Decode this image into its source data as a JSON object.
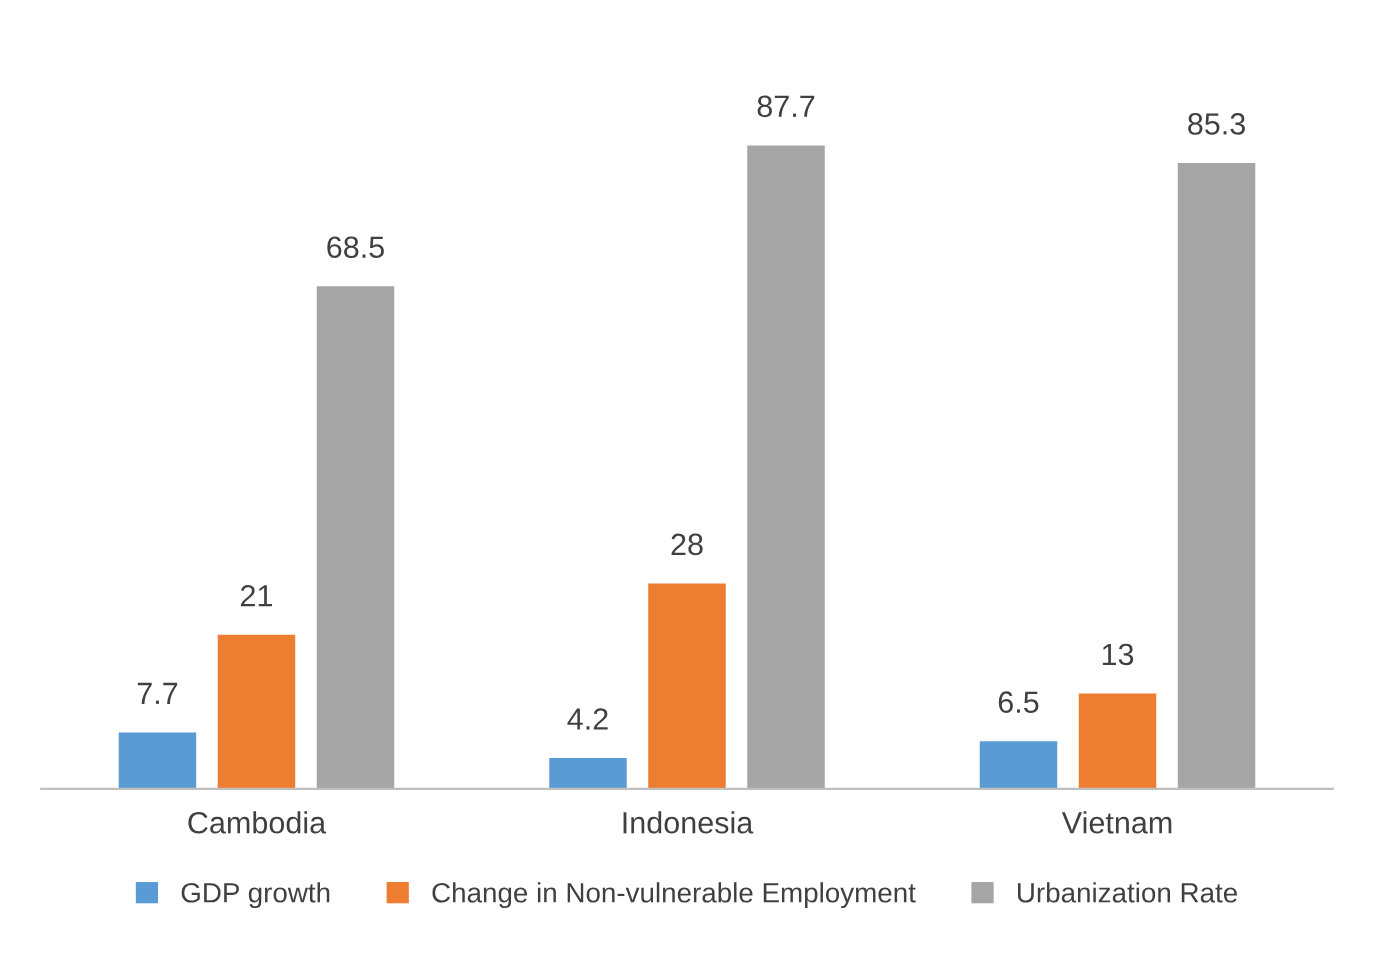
{
  "chart_data": {
    "type": "bar",
    "categories": [
      "Cambodia",
      "Indonesia",
      "Vietnam"
    ],
    "series": [
      {
        "name": "GDP growth",
        "color": "#5b9bd5",
        "values": [
          7.7,
          4.2,
          6.5
        ]
      },
      {
        "name": "Change in Non-vulnerable Employment",
        "color": "#ed7d31",
        "values": [
          21,
          28,
          13
        ]
      },
      {
        "name": "Urbanization Rate",
        "color": "#a5a5a5",
        "values": [
          68.5,
          87.7,
          85.3
        ]
      }
    ],
    "data_labels": true,
    "legend": "bottom"
  }
}
